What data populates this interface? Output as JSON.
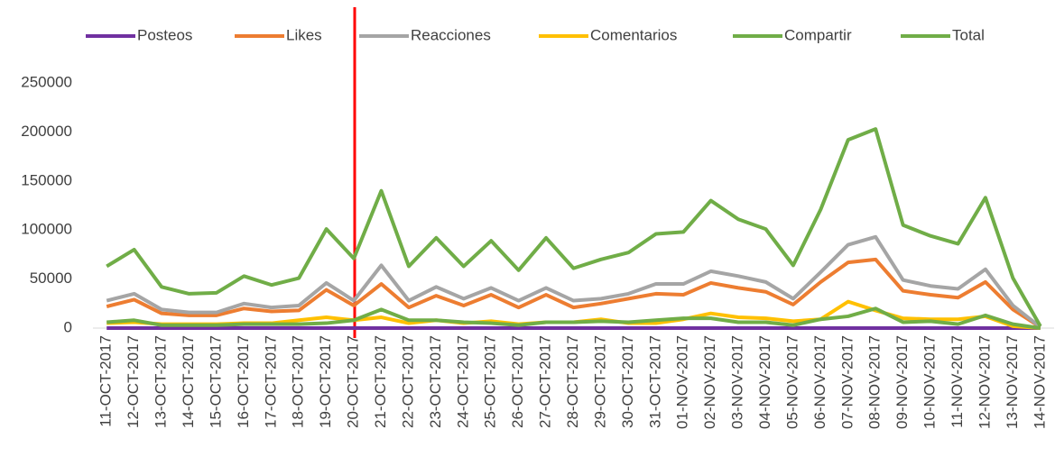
{
  "chart_data": {
    "type": "line",
    "categories": [
      "11-OCT-2017",
      "12-OCT-2017",
      "13-OCT-2017",
      "14-OCT-2017",
      "15-OCT-2017",
      "16-OCT-2017",
      "17-OCT-2017",
      "18-OCT-2017",
      "19-OCT-2017",
      "20-OCT-2017",
      "21-OCT-2017",
      "22-OCT-2017",
      "23-OCT-2017",
      "24-OCT-2017",
      "25-OCT-2017",
      "26-OCT-2017",
      "27-OCT-2017",
      "28-OCT-2017",
      "29-OCT-2017",
      "30-OCT-2017",
      "31-OCT-2017",
      "01-NOV-2017",
      "02-NOV-2017",
      "03-NOV-2017",
      "04-NOV-2017",
      "05-NOV-2017",
      "06-NOV-2017",
      "07-NOV-2017",
      "08-NOV-2017",
      "09-NOV-2017",
      "10-NOV-2017",
      "11-NOV-2017",
      "12-NOV-2017",
      "13-NOV-2017",
      "14-NOV-2017"
    ],
    "series": [
      {
        "name": "Posteos",
        "color": "#7030a0",
        "values": [
          50,
          50,
          50,
          50,
          50,
          50,
          50,
          50,
          50,
          50,
          50,
          50,
          50,
          50,
          50,
          50,
          50,
          50,
          50,
          50,
          50,
          50,
          50,
          50,
          50,
          50,
          50,
          50,
          50,
          50,
          50,
          50,
          50,
          50,
          50
        ]
      },
      {
        "name": "Likes",
        "color": "#ed7d31",
        "values": [
          22000,
          29000,
          15000,
          13000,
          13000,
          20000,
          17000,
          18000,
          39000,
          23000,
          45000,
          21000,
          33000,
          23000,
          34000,
          21000,
          34000,
          21000,
          25000,
          30000,
          35000,
          34000,
          46000,
          41000,
          37000,
          24000,
          47000,
          67000,
          70000,
          38000,
          34000,
          31000,
          47000,
          19000,
          1000
        ]
      },
      {
        "name": "Reacciones",
        "color": "#a5a5a5",
        "values": [
          28000,
          35000,
          19000,
          16000,
          16000,
          25000,
          21000,
          23000,
          46000,
          28000,
          64000,
          28000,
          42000,
          30000,
          41000,
          28000,
          41000,
          28000,
          30000,
          35000,
          45000,
          45000,
          58000,
          53000,
          47000,
          30000,
          57000,
          85000,
          93000,
          49000,
          43000,
          40000,
          60000,
          23000,
          1000
        ]
      },
      {
        "name": "Comentarios",
        "color": "#ffc000",
        "values": [
          5000,
          6000,
          4000,
          4000,
          4000,
          5000,
          5000,
          8000,
          11000,
          8000,
          11000,
          5000,
          8000,
          5000,
          7000,
          4000,
          6000,
          6000,
          9000,
          5000,
          5000,
          9000,
          15000,
          11000,
          10000,
          7000,
          9000,
          27000,
          18000,
          10000,
          9000,
          9000,
          12000,
          2000,
          0
        ]
      },
      {
        "name": "Compartir",
        "color": "#70ad47",
        "values": [
          6000,
          8000,
          3000,
          3000,
          3000,
          4000,
          4000,
          4000,
          5000,
          8000,
          19000,
          8000,
          8000,
          6000,
          5000,
          3000,
          6000,
          6000,
          7000,
          6000,
          8000,
          10000,
          10000,
          6000,
          6000,
          3000,
          9000,
          12000,
          20000,
          6000,
          7000,
          4000,
          13000,
          4000,
          0
        ]
      },
      {
        "name": "Total",
        "color": "#70ad47",
        "values": [
          63000,
          80000,
          42000,
          35000,
          36000,
          53000,
          44000,
          51000,
          101000,
          71000,
          140000,
          63000,
          92000,
          63000,
          89000,
          59000,
          92000,
          61000,
          70000,
          77000,
          96000,
          98000,
          130000,
          111000,
          101000,
          64000,
          121000,
          192000,
          203000,
          105000,
          94000,
          86000,
          133000,
          51000,
          2000
        ]
      }
    ],
    "ylim": [
      0,
      250000
    ],
    "yticks": [
      0,
      50000,
      100000,
      150000,
      200000,
      250000
    ],
    "grid": false,
    "legend": "top"
  }
}
